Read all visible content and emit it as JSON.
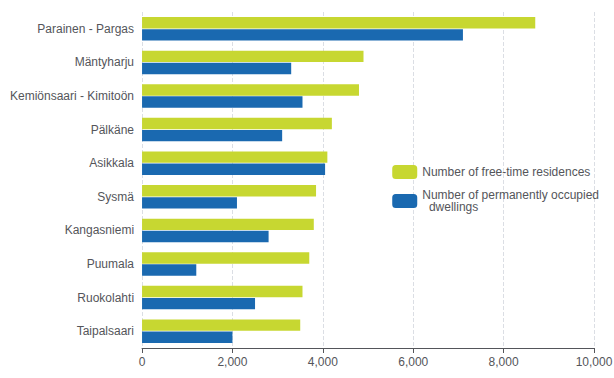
{
  "chart_data": {
    "type": "bar",
    "orientation": "horizontal",
    "categories": [
      "Taipalsaari",
      "Ruokolahti",
      "Puumala",
      "Kangasniemi",
      "Sysmä",
      "Asikkala",
      "Pälkäne",
      "Kemiönsaari - Kimitoön",
      "Mäntyharju",
      "Parainen - Pargas"
    ],
    "series": [
      {
        "name": "Number of free-time residences",
        "color": "#c7d731",
        "values": [
          3500,
          3550,
          3700,
          3800,
          3850,
          4100,
          4200,
          4800,
          4900,
          8700
        ]
      },
      {
        "name": "Number of permanently occupied\n  dwellings",
        "color": "#1a69b0",
        "values": [
          2000,
          2500,
          1200,
          2800,
          2100,
          4050,
          3100,
          3550,
          3300,
          7100
        ]
      }
    ],
    "xlim": [
      0,
      10000
    ],
    "xticks": [
      0,
      2000,
      4000,
      6000,
      8000,
      10000
    ],
    "grid": true,
    "legend": "right"
  }
}
